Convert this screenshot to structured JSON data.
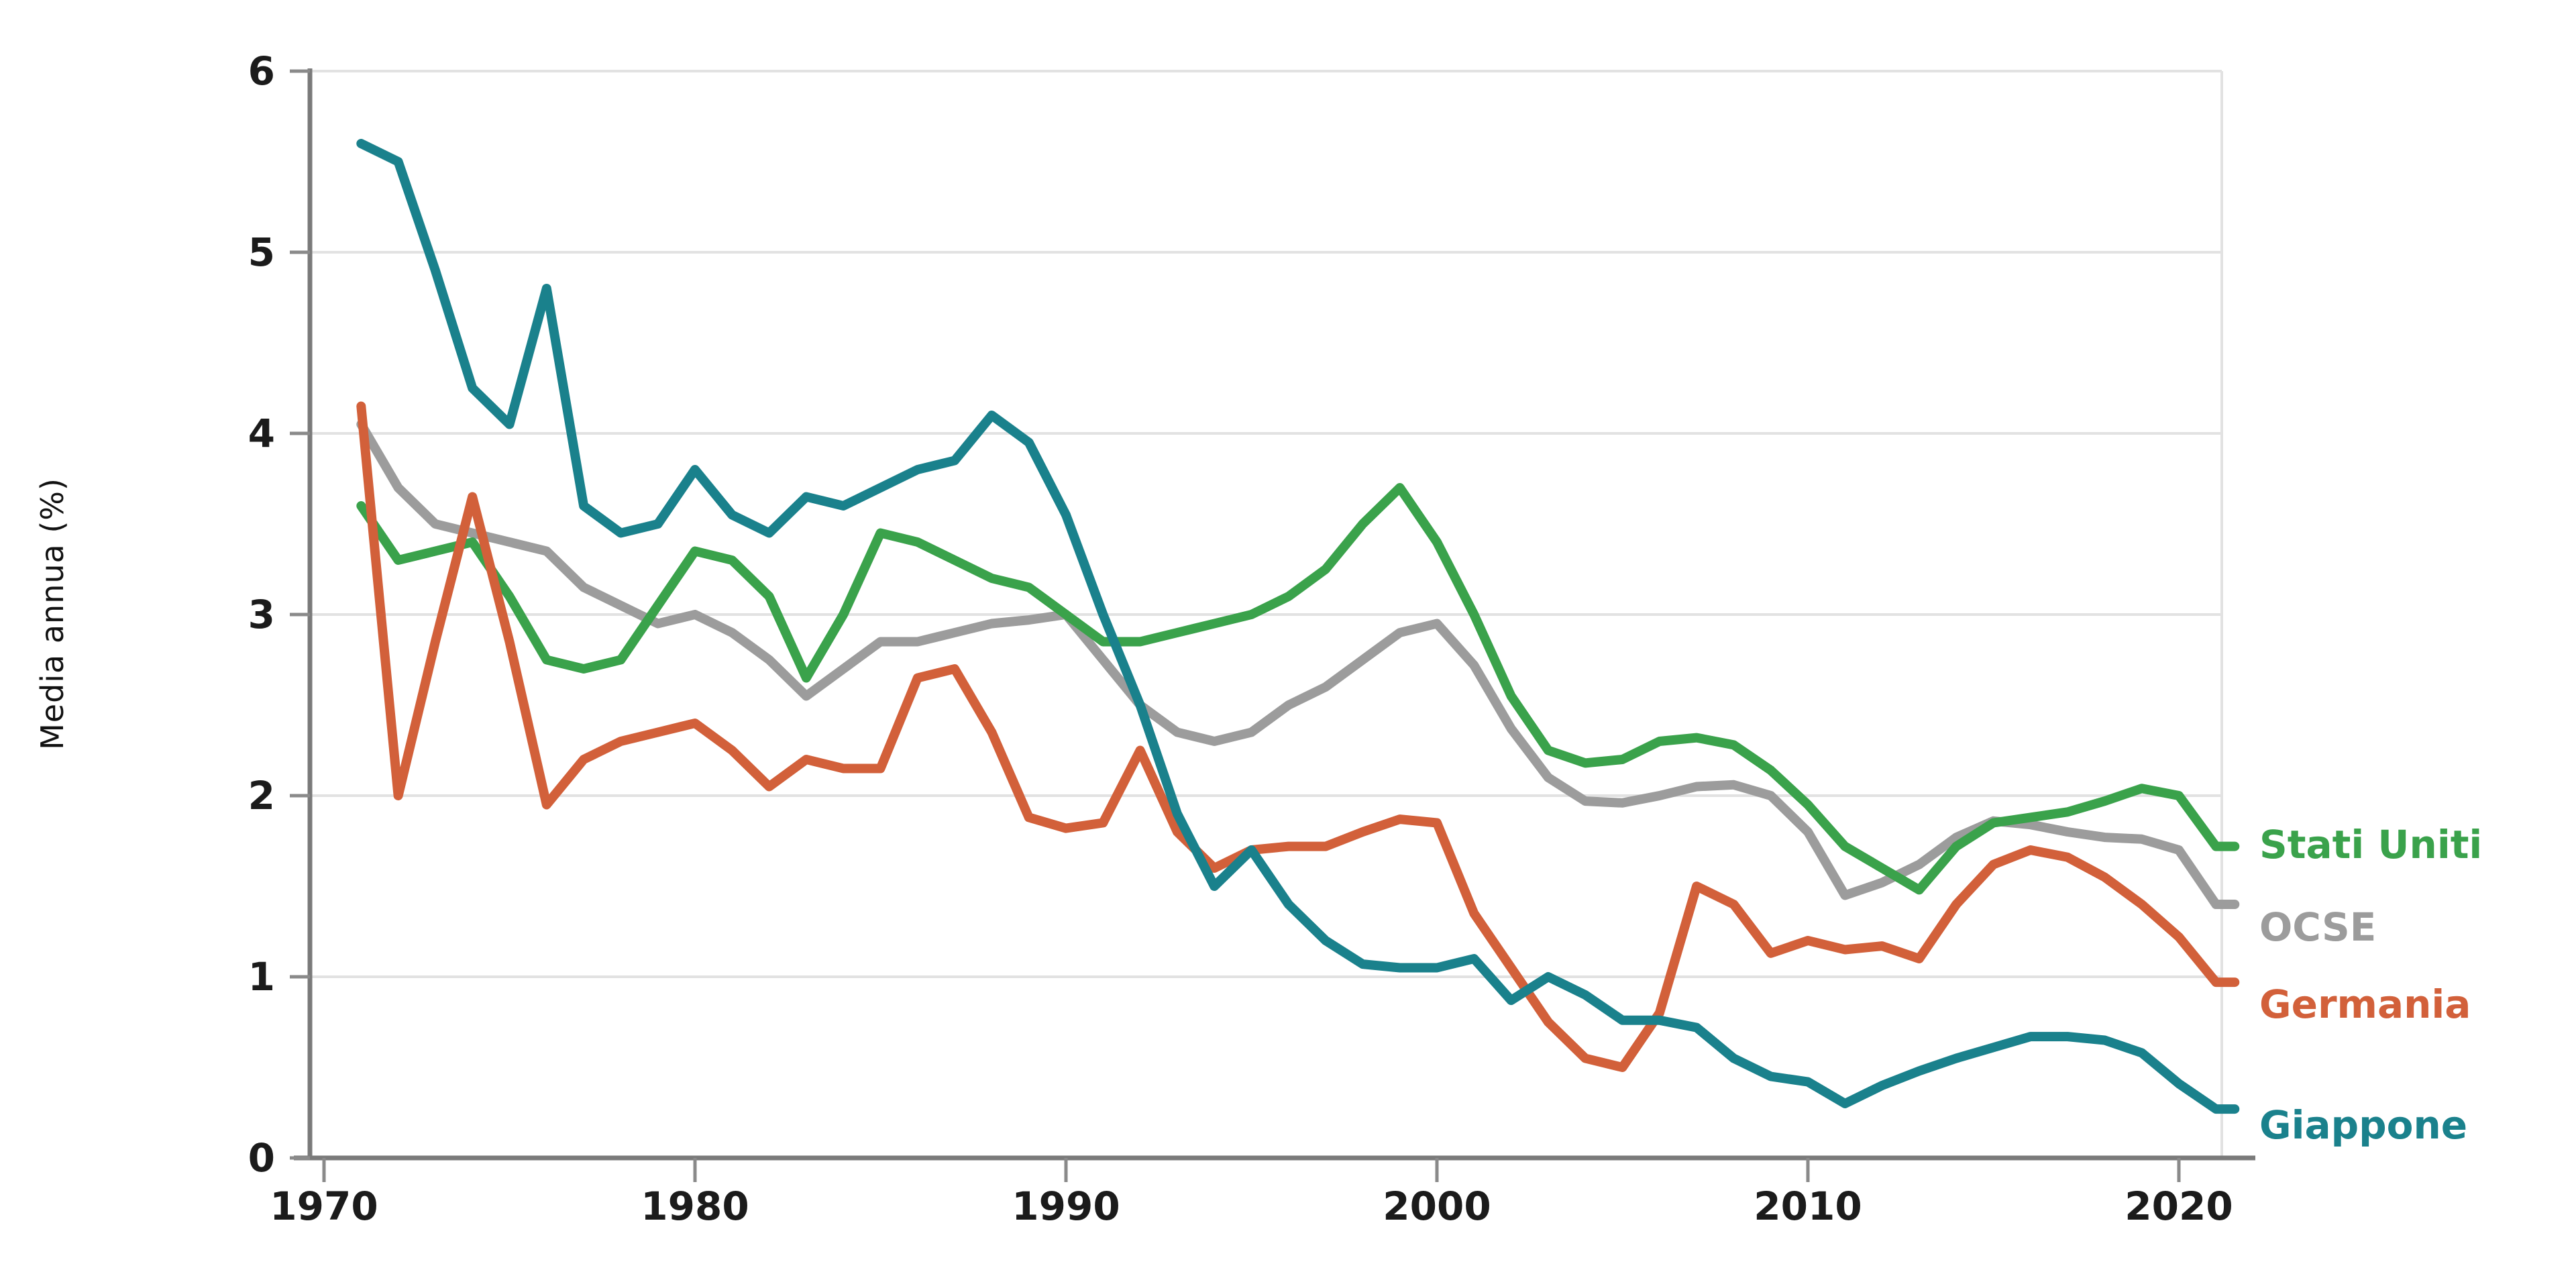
{
  "chart_data": {
    "type": "line",
    "title": "",
    "xlabel": "",
    "ylabel": "Media annua (%)",
    "ylim": [
      0,
      6
    ],
    "xlim": [
      1970,
      2022
    ],
    "yticks": [
      0,
      1,
      2,
      3,
      4,
      5,
      6
    ],
    "xticks": [
      1970,
      1980,
      1990,
      2000,
      2010,
      2020
    ],
    "grid": "horizontal",
    "legend_position": "right",
    "x": [
      1971,
      1972,
      1973,
      1974,
      1975,
      1976,
      1977,
      1978,
      1979,
      1980,
      1981,
      1982,
      1983,
      1984,
      1985,
      1986,
      1987,
      1988,
      1989,
      1990,
      1991,
      1992,
      1993,
      1994,
      1995,
      1996,
      1997,
      1998,
      1999,
      2000,
      2001,
      2002,
      2003,
      2004,
      2005,
      2006,
      2007,
      2008,
      2009,
      2010,
      2011,
      2012,
      2013,
      2014,
      2015,
      2016,
      2017,
      2018,
      2019,
      2020,
      2021
    ],
    "series": [
      {
        "name": "Stati Uniti",
        "color": "#3aa24b",
        "values": [
          3.6,
          3.3,
          3.35,
          3.4,
          3.1,
          2.75,
          2.7,
          2.75,
          3.05,
          3.35,
          3.3,
          3.1,
          2.65,
          3.0,
          3.45,
          3.4,
          3.3,
          3.2,
          3.15,
          3.0,
          2.85,
          2.85,
          2.9,
          2.95,
          3.0,
          3.1,
          3.25,
          3.5,
          3.7,
          3.4,
          3.0,
          2.55,
          2.25,
          2.18,
          2.2,
          2.3,
          2.32,
          2.28,
          2.14,
          1.95,
          1.72,
          1.6,
          1.48,
          1.72,
          1.85,
          1.88,
          1.91,
          1.97,
          2.04,
          2.0,
          1.72
        ]
      },
      {
        "name": "OCSE",
        "color": "#9c9c9c",
        "values": [
          4.05,
          3.7,
          3.5,
          3.45,
          3.4,
          3.35,
          3.15,
          3.05,
          2.95,
          3.0,
          2.9,
          2.75,
          2.55,
          2.7,
          2.85,
          2.85,
          2.9,
          2.95,
          2.97,
          3.0,
          2.75,
          2.5,
          2.35,
          2.3,
          2.35,
          2.5,
          2.6,
          2.75,
          2.9,
          2.95,
          2.72,
          2.37,
          2.1,
          1.97,
          1.96,
          2.0,
          2.05,
          2.06,
          2.0,
          1.8,
          1.45,
          1.52,
          1.62,
          1.77,
          1.86,
          1.84,
          1.8,
          1.77,
          1.76,
          1.7,
          1.4
        ]
      },
      {
        "name": "Germania",
        "color": "#d2603a",
        "values": [
          4.15,
          2.0,
          2.85,
          3.65,
          2.85,
          1.95,
          2.2,
          2.3,
          2.35,
          2.4,
          2.25,
          2.05,
          2.2,
          2.15,
          2.15,
          2.65,
          2.7,
          2.35,
          1.88,
          1.82,
          1.85,
          2.25,
          1.8,
          1.6,
          1.7,
          1.72,
          1.72,
          1.8,
          1.87,
          1.85,
          1.35,
          1.05,
          0.75,
          0.55,
          0.5,
          0.8,
          1.5,
          1.4,
          1.13,
          1.2,
          1.15,
          1.17,
          1.1,
          1.4,
          1.62,
          1.7,
          1.66,
          1.55,
          1.4,
          1.22,
          0.97
        ]
      },
      {
        "name": "Giappone",
        "color": "#1a818c",
        "values": [
          5.6,
          5.5,
          4.9,
          4.25,
          4.05,
          4.8,
          3.6,
          3.45,
          3.5,
          3.8,
          3.55,
          3.45,
          3.65,
          3.6,
          3.7,
          3.8,
          3.85,
          4.1,
          3.95,
          3.55,
          3.0,
          2.5,
          1.9,
          1.5,
          1.7,
          1.4,
          1.2,
          1.07,
          1.05,
          1.05,
          1.1,
          0.87,
          1.0,
          0.9,
          0.76,
          0.76,
          0.72,
          0.55,
          0.45,
          0.42,
          0.3,
          0.4,
          0.48,
          0.55,
          0.61,
          0.67,
          0.67,
          0.65,
          0.58,
          0.41,
          0.27
        ]
      }
    ]
  }
}
